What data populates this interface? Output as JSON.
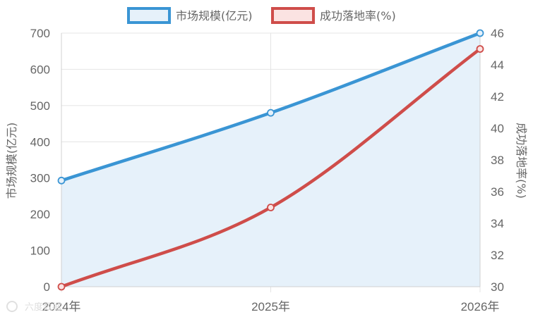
{
  "chart_data": {
    "type": "line",
    "categories": [
      "2024年",
      "2025年",
      "2026年"
    ],
    "series": [
      {
        "name": "市场规模(亿元)",
        "axis": "left",
        "values": [
          293,
          480,
          700
        ],
        "color": "#3a95d4",
        "fill": "#e6f1fa",
        "area": true
      },
      {
        "name": "成功落地率(%)",
        "axis": "right",
        "values": [
          30,
          35,
          45
        ],
        "color": "#cf4d4a",
        "fill": "#fbe3e2",
        "area": false
      }
    ],
    "y_left": {
      "label": "市场规模(亿元)",
      "ylim": [
        0,
        700
      ],
      "ticks": [
        0,
        100,
        200,
        300,
        400,
        500,
        600,
        700
      ]
    },
    "y_right": {
      "label": "成功落地率(%)",
      "ylim": [
        30,
        46
      ],
      "ticks": [
        30,
        32,
        34,
        36,
        38,
        40,
        42,
        44,
        46
      ]
    },
    "grid": true,
    "legend": "top-center"
  },
  "watermark": {
    "text": "六度数据"
  }
}
